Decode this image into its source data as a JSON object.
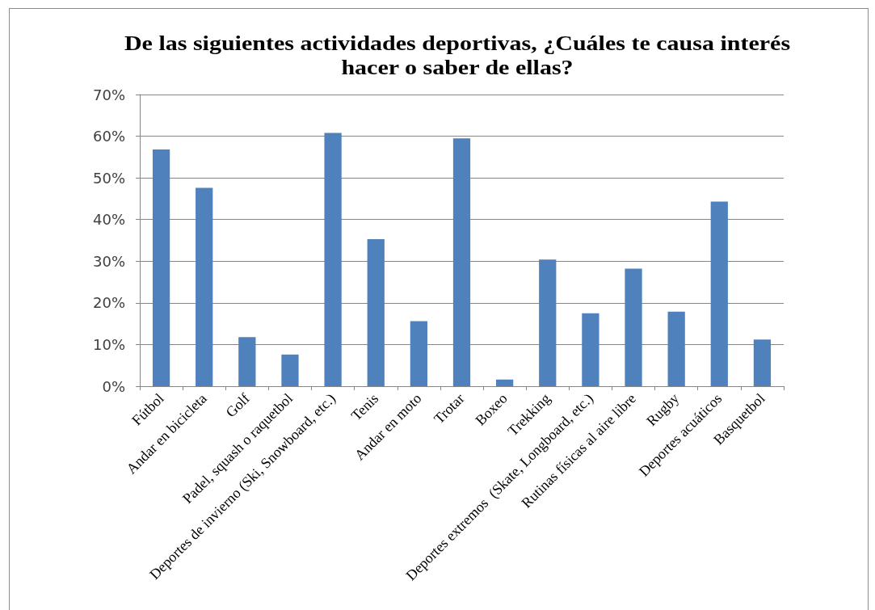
{
  "chart_data": {
    "type": "bar",
    "title": "De las siguientes actividades deportivas, ¿Cuáles te causa interés hacer o saber de ellas?",
    "categories": [
      "Fútbol",
      "Andar en bicicleta",
      "Golf",
      "Padel, squash o raquetbol",
      "Deportes de invierno (Ski, Snowboard, etc.)",
      "Tenis",
      "Andar en moto",
      "Trotar",
      "Boxeo",
      "Trekking",
      "Deportes extremos  (Skate, Longboard, etc.)",
      "Rutinas físicas al aire libre",
      "Rugby",
      "Deportes acuáticos",
      "Basquetbol"
    ],
    "values": [
      56.8,
      47.6,
      11.8,
      7.6,
      60.8,
      35.3,
      15.6,
      59.5,
      1.6,
      30.4,
      17.5,
      28.2,
      17.9,
      44.3,
      11.2
    ],
    "color": "#4f81bd",
    "ylim": [
      0,
      70
    ],
    "yticks": [
      {
        "value": 0,
        "label": "0%"
      },
      {
        "value": 10,
        "label": "10%"
      },
      {
        "value": 20,
        "label": "20%"
      },
      {
        "value": 30,
        "label": "30%"
      },
      {
        "value": 40,
        "label": "40%"
      },
      {
        "value": 50,
        "label": "50%"
      },
      {
        "value": 60,
        "label": "60%"
      },
      {
        "value": 70,
        "label": "70%"
      }
    ],
    "grid": "y"
  }
}
